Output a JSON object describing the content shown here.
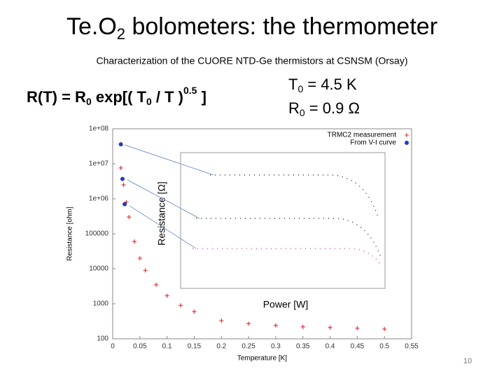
{
  "title": [
    "Te.O",
    "2",
    " bolometers: the thermometer"
  ],
  "subtitle": "Characterization of the CUORE NTD-Ge thermistors at CSNSM (Orsay)",
  "formula": [
    "R(T) = R",
    "0",
    " exp[( T",
    "0",
    " / T )",
    "0.5",
    " ]"
  ],
  "params": [
    [
      "T",
      "0",
      " = 4.5 K"
    ],
    [
      "R",
      "0",
      " = 0.9 Ω"
    ]
  ],
  "inset": {
    "ylabel": "Resistance [Ω]",
    "xlabel": "Power [W]"
  },
  "page_number": "10",
  "chart_data": {
    "type": "scatter",
    "xlabel": "Temperature [K]",
    "ylabel": "Resistance [ohm]",
    "xlim": [
      0,
      0.55
    ],
    "xticks": [
      0,
      0.05,
      0.1,
      0.15,
      0.2,
      0.25,
      0.3,
      0.35,
      0.4,
      0.45,
      0.5,
      0.55
    ],
    "ylim": [
      100,
      100000000
    ],
    "log_y": true,
    "yticks": [
      100,
      1000,
      10000,
      100000,
      {
        "value": 1000000,
        "label": "1e+06"
      },
      {
        "value": 10000000,
        "label": "1e+07"
      },
      {
        "value": 100000000,
        "label": "1e+08"
      }
    ],
    "legend": "upper right",
    "series": [
      {
        "name": "TRMC2 measurement",
        "color": "#e8313a",
        "marker": "plus",
        "x": [
          0.015,
          0.02,
          0.025,
          0.03,
          0.04,
          0.05,
          0.06,
          0.08,
          0.1,
          0.125,
          0.15,
          0.2,
          0.25,
          0.3,
          0.35,
          0.4,
          0.45,
          0.5
        ],
        "values": [
          7600000,
          2500000,
          800000,
          300000,
          60000,
          20000,
          9000,
          3500,
          1700,
          900,
          600,
          330,
          270,
          240,
          220,
          210,
          200,
          190
        ]
      },
      {
        "name": "From V-I curve",
        "color": "#1f3fbf",
        "marker": "dot",
        "x": [
          0.015,
          0.018,
          0.022
        ],
        "values": [
          36000000,
          3700000,
          700000
        ]
      }
    ]
  }
}
